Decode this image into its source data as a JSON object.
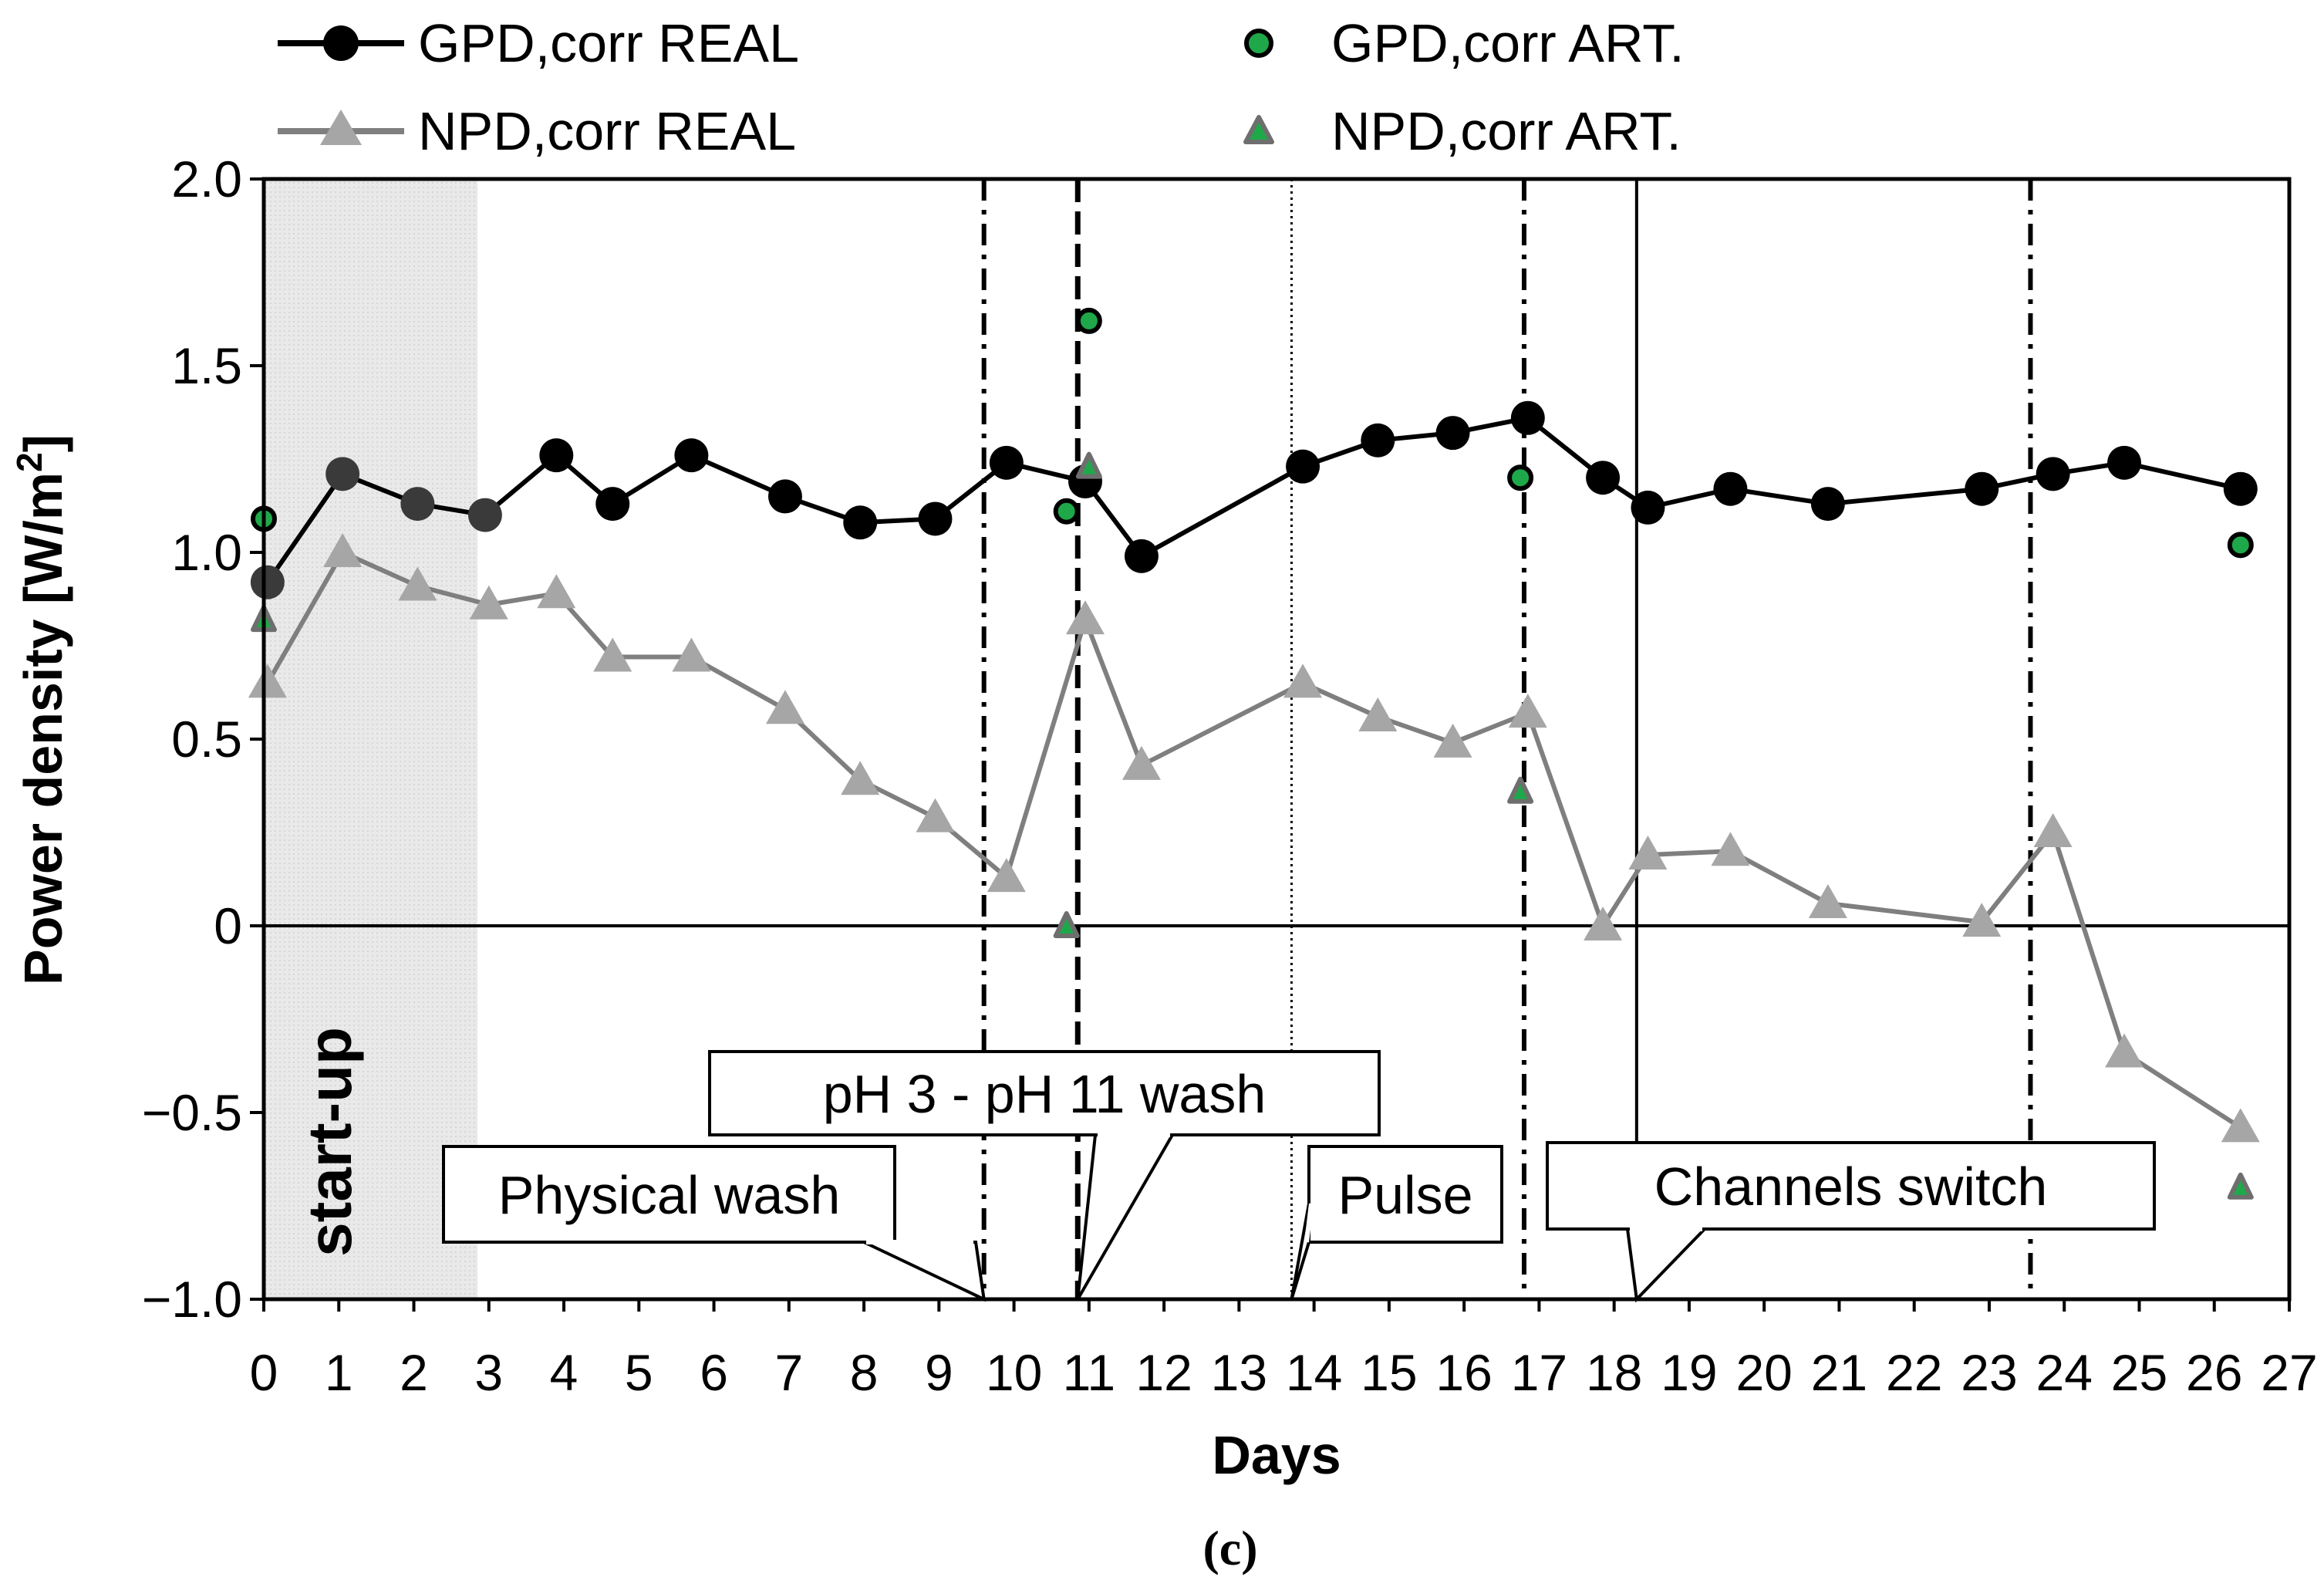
{
  "chart_data": {
    "type": "line",
    "xlabel": "Days",
    "ylabel": "Power density [W/m²]",
    "ylabel_main": "Power density [W/m",
    "ylabel_sup": "2",
    "ylabel_close": "]",
    "xlim": [
      0,
      27
    ],
    "ylim": [
      -1.0,
      2.0
    ],
    "x_ticks": [
      "0",
      "1",
      "2",
      "3",
      "4",
      "5",
      "6",
      "7",
      "8",
      "9",
      "10",
      "11",
      "12",
      "13",
      "14",
      "15",
      "16",
      "17",
      "18",
      "19",
      "20",
      "21",
      "22",
      "23",
      "24",
      "25",
      "26",
      "27"
    ],
    "y_ticks": [
      {
        "value": 2.0,
        "label": "2.0"
      },
      {
        "value": 1.5,
        "label": "1.5"
      },
      {
        "value": 1.0,
        "label": "1.0"
      },
      {
        "value": 0.5,
        "label": "0.5"
      },
      {
        "value": 0.0,
        "label": "0"
      },
      {
        "value": -0.5,
        "label": "−0.5"
      },
      {
        "value": -1.0,
        "label": "−1.0"
      }
    ],
    "grid": false,
    "startup_region": {
      "x0": 0,
      "x1": 2.85,
      "label": "start-up",
      "color": "#e6e6e6"
    },
    "series": [
      {
        "name": "GPD,corr REAL",
        "marker": "circle",
        "line": true,
        "color": "#000000",
        "x": [
          0.05,
          1.05,
          2.05,
          2.95,
          3.9,
          4.65,
          5.7,
          6.95,
          7.95,
          8.95,
          9.9,
          10.95,
          11.7,
          13.85,
          14.85,
          15.85,
          16.85,
          17.85,
          18.45,
          19.55,
          20.85,
          22.9,
          23.85,
          24.8,
          26.35
        ],
        "values": [
          0.92,
          1.21,
          1.13,
          1.1,
          1.26,
          1.13,
          1.26,
          1.15,
          1.08,
          1.09,
          1.24,
          1.19,
          0.99,
          1.23,
          1.3,
          1.32,
          1.36,
          1.2,
          1.12,
          1.17,
          1.13,
          1.17,
          1.21,
          1.24,
          1.17
        ]
      },
      {
        "name": "NPD,corr REAL",
        "marker": "triangle",
        "line": true,
        "color": "#a6a6a6",
        "x": [
          0.05,
          1.05,
          2.05,
          3.0,
          3.9,
          4.65,
          5.7,
          6.95,
          7.95,
          8.95,
          9.9,
          10.95,
          11.7,
          13.85,
          14.85,
          15.85,
          16.85,
          17.85,
          18.45,
          19.55,
          20.85,
          22.9,
          23.85,
          24.8,
          26.35
        ],
        "values": [
          0.65,
          1.0,
          0.91,
          0.86,
          0.89,
          0.72,
          0.72,
          0.58,
          0.39,
          0.29,
          0.13,
          0.82,
          0.43,
          0.65,
          0.56,
          0.49,
          0.57,
          0.0,
          0.19,
          0.2,
          0.06,
          0.01,
          0.25,
          -0.34,
          -0.54
        ]
      },
      {
        "name": "GPD,corr ART.",
        "marker": "circle",
        "line": false,
        "color": "#1fa84a",
        "x": [
          0.0,
          10.7,
          11.0,
          16.75,
          26.35
        ],
        "values": [
          1.09,
          1.11,
          1.62,
          1.2,
          1.02
        ]
      },
      {
        "name": "NPD,corr ART.",
        "marker": "triangle",
        "line": false,
        "color": "#1fa84a",
        "x": [
          0.0,
          10.7,
          11.0,
          16.75,
          26.35
        ],
        "values": [
          0.82,
          0.0,
          1.23,
          0.36,
          -0.7
        ]
      }
    ],
    "vertical_lines": [
      {
        "x": 9.6,
        "style": "dashdot"
      },
      {
        "x": 10.85,
        "style": "dashed"
      },
      {
        "x": 13.7,
        "style": "dotted"
      },
      {
        "x": 16.8,
        "style": "dashdot"
      },
      {
        "x": 18.3,
        "style": "solid"
      },
      {
        "x": 23.55,
        "style": "dashdot"
      }
    ],
    "annotations": [
      {
        "text": "Physical wash",
        "target_x": 9.6
      },
      {
        "text": "pH 3 - pH 11 wash",
        "target_x": 10.85
      },
      {
        "text": "Pulse",
        "target_x": 13.7
      },
      {
        "text": "Channels switch",
        "target_x": 18.3
      }
    ],
    "panel_label": "(c)",
    "legend_position": "top"
  }
}
